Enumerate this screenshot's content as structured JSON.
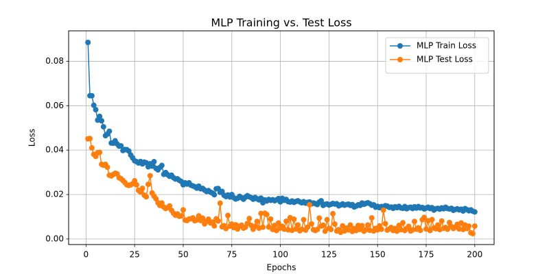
{
  "chart_data": {
    "type": "line",
    "title": "MLP Training vs. Test Loss",
    "x_label": "Epochs",
    "y_label": "Loss",
    "x": [
      1,
      2,
      3,
      4,
      5,
      6,
      7,
      8,
      9,
      10,
      11,
      12,
      13,
      14,
      15,
      16,
      17,
      18,
      19,
      20,
      21,
      22,
      23,
      24,
      25,
      26,
      27,
      28,
      29,
      30,
      31,
      32,
      33,
      34,
      35,
      36,
      37,
      38,
      39,
      40,
      41,
      42,
      43,
      44,
      45,
      46,
      47,
      48,
      49,
      50,
      51,
      52,
      53,
      54,
      55,
      56,
      57,
      58,
      59,
      60,
      61,
      62,
      63,
      64,
      65,
      66,
      67,
      68,
      69,
      70,
      71,
      72,
      73,
      74,
      75,
      76,
      77,
      78,
      79,
      80,
      81,
      82,
      83,
      84,
      85,
      86,
      87,
      88,
      89,
      90,
      91,
      92,
      93,
      94,
      95,
      96,
      97,
      98,
      99,
      100,
      101,
      102,
      103,
      104,
      105,
      106,
      107,
      108,
      109,
      110,
      111,
      112,
      113,
      114,
      115,
      116,
      117,
      118,
      119,
      120,
      121,
      122,
      123,
      124,
      125,
      126,
      127,
      128,
      129,
      130,
      131,
      132,
      133,
      134,
      135,
      136,
      137,
      138,
      139,
      140,
      141,
      142,
      143,
      144,
      145,
      146,
      147,
      148,
      149,
      150,
      151,
      152,
      153,
      154,
      155,
      156,
      157,
      158,
      159,
      160,
      161,
      162,
      163,
      164,
      165,
      166,
      167,
      168,
      169,
      170,
      171,
      172,
      173,
      174,
      175,
      176,
      177,
      178,
      179,
      180,
      181,
      182,
      183,
      184,
      185,
      186,
      187,
      188,
      189,
      190,
      191,
      192,
      193,
      194,
      195,
      196,
      197,
      198,
      199,
      200
    ],
    "series": [
      {
        "name": "MLP Train Loss",
        "color": "#1f77b4",
        "values": [
          0.0885,
          0.0645,
          0.0645,
          0.0602,
          0.0582,
          0.0535,
          0.0552,
          0.0532,
          0.0505,
          0.0465,
          0.0472,
          0.0485,
          0.0432,
          0.0431,
          0.0442,
          0.0428,
          0.0418,
          0.0419,
          0.0398,
          0.0403,
          0.0402,
          0.0396,
          0.0378,
          0.0365,
          0.0352,
          0.0348,
          0.0342,
          0.0349,
          0.0338,
          0.0346,
          0.0343,
          0.0325,
          0.0339,
          0.0328,
          0.0348,
          0.0318,
          0.0311,
          0.0322,
          0.0331,
          0.0291,
          0.0299,
          0.0289,
          0.0282,
          0.0287,
          0.0276,
          0.027,
          0.0271,
          0.0264,
          0.0259,
          0.0244,
          0.0253,
          0.0247,
          0.0253,
          0.0242,
          0.0239,
          0.0235,
          0.0229,
          0.0238,
          0.0226,
          0.0228,
          0.022,
          0.0214,
          0.0218,
          0.0211,
          0.0207,
          0.0199,
          0.0226,
          0.0227,
          0.021,
          0.0214,
          0.0197,
          0.0191,
          0.0198,
          0.0189,
          0.02,
          0.0186,
          0.018,
          0.0183,
          0.0192,
          0.0186,
          0.0179,
          0.0188,
          0.0195,
          0.019,
          0.0186,
          0.0179,
          0.0187,
          0.0181,
          0.0176,
          0.0184,
          0.0163,
          0.0176,
          0.0171,
          0.0178,
          0.0174,
          0.0177,
          0.0172,
          0.0176,
          0.0182,
          0.0167,
          0.0183,
          0.0174,
          0.0178,
          0.0168,
          0.0166,
          0.0171,
          0.0165,
          0.0169,
          0.0172,
          0.0167,
          0.0163,
          0.0168,
          0.0161,
          0.0165,
          0.0167,
          0.0158,
          0.0162,
          0.0159,
          0.0155,
          0.0166,
          0.0172,
          0.0151,
          0.0156,
          0.0158,
          0.0153,
          0.0156,
          0.016,
          0.0157,
          0.0159,
          0.0149,
          0.0153,
          0.0158,
          0.0152,
          0.0155,
          0.0157,
          0.0151,
          0.0155,
          0.0144,
          0.0148,
          0.0154,
          0.0151,
          0.0162,
          0.0156,
          0.016,
          0.0163,
          0.0159,
          0.0152,
          0.0154,
          0.0143,
          0.0147,
          0.0141,
          0.0146,
          0.0139,
          0.015,
          0.0148,
          0.0142,
          0.0144,
          0.0138,
          0.0145,
          0.0141,
          0.0147,
          0.014,
          0.0138,
          0.0146,
          0.0136,
          0.0141,
          0.0143,
          0.0137,
          0.0145,
          0.0139,
          0.0146,
          0.014,
          0.0142,
          0.0135,
          0.0139,
          0.0143,
          0.0137,
          0.0141,
          0.013,
          0.0136,
          0.0138,
          0.0134,
          0.014,
          0.0136,
          0.0143,
          0.0137,
          0.0135,
          0.0138,
          0.0129,
          0.0133,
          0.0136,
          0.0131,
          0.0134,
          0.0126,
          0.0137,
          0.0132,
          0.0127,
          0.0131,
          0.0125,
          0.0122
        ]
      },
      {
        "name": "MLP Test Loss",
        "color": "#ff7f0e",
        "values": [
          0.0451,
          0.0452,
          0.041,
          0.0381,
          0.0372,
          0.0388,
          0.039,
          0.0336,
          0.0332,
          0.0336,
          0.0323,
          0.0287,
          0.0284,
          0.029,
          0.0296,
          0.0293,
          0.0276,
          0.0271,
          0.0263,
          0.0254,
          0.0244,
          0.0241,
          0.0244,
          0.0248,
          0.0262,
          0.0244,
          0.0219,
          0.0211,
          0.0228,
          0.0197,
          0.019,
          0.0246,
          0.0285,
          0.0207,
          0.0193,
          0.0181,
          0.0163,
          0.0151,
          0.0162,
          0.0144,
          0.0137,
          0.0141,
          0.0149,
          0.0129,
          0.0116,
          0.0107,
          0.0113,
          0.0102,
          0.0104,
          0.0131,
          0.0085,
          0.0083,
          0.009,
          0.0091,
          0.0095,
          0.0082,
          0.0086,
          0.0104,
          0.0083,
          0.0094,
          0.0068,
          0.0079,
          0.0089,
          0.0072,
          0.0076,
          0.0059,
          0.0091,
          0.0081,
          0.0161,
          0.0055,
          0.006,
          0.0047,
          0.0106,
          0.0058,
          0.0067,
          0.0051,
          0.0064,
          0.0045,
          0.0058,
          0.0062,
          0.0049,
          0.0053,
          0.007,
          0.0092,
          0.0061,
          0.0044,
          0.0057,
          0.0079,
          0.0049,
          0.0115,
          0.0053,
          0.0116,
          0.011,
          0.0054,
          0.009,
          0.0043,
          0.0061,
          0.0038,
          0.0072,
          0.0049,
          0.0057,
          0.0044,
          0.008,
          0.0041,
          0.0096,
          0.0039,
          0.0089,
          0.0045,
          0.0063,
          0.0037,
          0.0044,
          0.0087,
          0.004,
          0.0053,
          0.0154,
          0.0068,
          0.0042,
          0.0038,
          0.0043,
          0.0094,
          0.0058,
          0.0062,
          0.0035,
          0.0087,
          0.0048,
          0.0043,
          0.0114,
          0.0067,
          0.0036,
          0.0042,
          0.003,
          0.0059,
          0.0036,
          0.0049,
          0.0041,
          0.0063,
          0.0034,
          0.0047,
          0.0038,
          0.0061,
          0.0043,
          0.006,
          0.0035,
          0.0042,
          0.0063,
          0.0039,
          0.0095,
          0.0036,
          0.0048,
          0.0041,
          0.0059,
          0.0044,
          0.013,
          0.0069,
          0.004,
          0.0045,
          0.0052,
          0.0038,
          0.0047,
          0.0035,
          0.0061,
          0.0042,
          0.0073,
          0.0038,
          0.0047,
          0.0057,
          0.0036,
          0.0041,
          0.0079,
          0.0044,
          0.005,
          0.0039,
          0.0087,
          0.0097,
          0.0045,
          0.0082,
          0.0038,
          0.0087,
          0.005,
          0.0046,
          0.0063,
          0.0042,
          0.0081,
          0.0048,
          0.0052,
          0.0044,
          0.0074,
          0.0056,
          0.0047,
          0.0054,
          0.0066,
          0.0045,
          0.0072,
          0.0043,
          0.0063,
          0.0047,
          0.0058,
          0.0028,
          0.0024,
          0.0058
        ]
      }
    ],
    "xlim": [
      -8.95,
      209.95
    ],
    "ylim": [
      -0.0025,
      0.0937
    ],
    "xticks": [
      0,
      25,
      50,
      75,
      100,
      125,
      150,
      175,
      200
    ],
    "yticks": [
      {
        "value": 0,
        "label": "0.00"
      },
      0.02,
      0.04,
      0.06,
      0.08
    ],
    "grid": true,
    "legend": "upper right"
  }
}
